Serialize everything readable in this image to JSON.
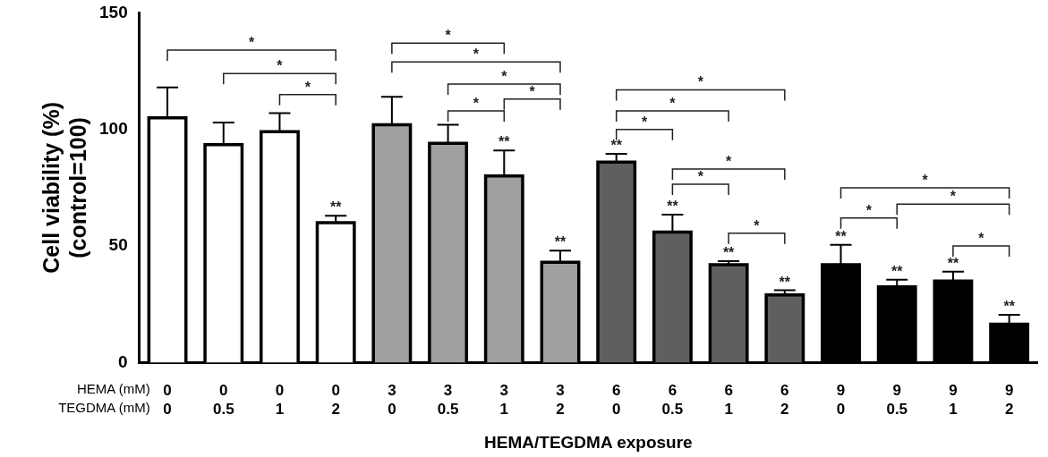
{
  "chart_data": {
    "type": "bar",
    "xlabel": "HEMA/TEGDMA exposure",
    "ylabel": "Cell viability (%)\n(control=100)",
    "categories": [
      "0\n0",
      "0\n0.5",
      "0\n1",
      "0\n2",
      "3\n0",
      "3\n0.5",
      "3\n1",
      "3\n2",
      "6\n0",
      "6\n0.5",
      "6\n1",
      "6\n2",
      "9\n0",
      "9\n0.5",
      "9\n1",
      "9\n2"
    ],
    "values": [
      105,
      93.5,
      99,
      60,
      102,
      94,
      80,
      43,
      86,
      56,
      42,
      29,
      42,
      32.5,
      35,
      16.5
    ],
    "colors": [
      "#ffffff",
      "#ffffff",
      "#ffffff",
      "#ffffff",
      "#a0a0a0",
      "#a0a0a0",
      "#a0a0a0",
      "#a0a0a0",
      "#5f5f5f",
      "#5f5f5f",
      "#5f5f5f",
      "#5f5f5f",
      "#000000",
      "#000000",
      "#000000",
      "#000000"
    ],
    "errors": [
      [
        105,
        118
      ],
      [
        93.5,
        103
      ],
      [
        99,
        107
      ],
      [
        60,
        63
      ],
      [
        102,
        114
      ],
      [
        94,
        102
      ],
      [
        80,
        91
      ],
      [
        43,
        48
      ],
      [
        86,
        89.5
      ],
      [
        56,
        63.5
      ],
      [
        42,
        43.5
      ],
      [
        29,
        31
      ],
      [
        42,
        50.5
      ],
      [
        32.5,
        35.5
      ],
      [
        35,
        39
      ],
      [
        16.5,
        20.5
      ]
    ],
    "ylim": [
      0,
      150
    ],
    "yticks": [
      0,
      50,
      100,
      150
    ],
    "grid": false,
    "legend": false,
    "annotations": [
      "HEMA (mM)",
      "TEGDMA (mM)",
      "*",
      "*",
      "*",
      "*",
      "*",
      "*",
      "*",
      "*",
      "*",
      "*",
      "*",
      "*",
      "*",
      "*",
      "*",
      "*",
      "*",
      "*",
      {
        "text": "**",
        "x": "0\n2",
        "y": 63
      },
      {
        "text": "**",
        "x": "3\n1",
        "y": 91
      },
      {
        "text": "**",
        "x": "3\n2",
        "y": 48
      },
      {
        "text": "**",
        "x": "6\n0",
        "y": 89.5
      },
      {
        "text": "**",
        "x": "6\n0.5",
        "y": 63.5
      },
      {
        "text": "**",
        "x": "6\n1",
        "y": 43.5
      },
      {
        "text": "**",
        "x": "6\n2",
        "y": 31
      },
      {
        "text": "**",
        "x": "9\n0",
        "y": 50.5
      },
      {
        "text": "**",
        "x": "9\n0.5",
        "y": 35.5
      },
      {
        "text": "**",
        "x": "9\n1",
        "y": 39
      },
      {
        "text": "**",
        "x": "9\n2",
        "y": 20.5
      }
    ]
  }
}
